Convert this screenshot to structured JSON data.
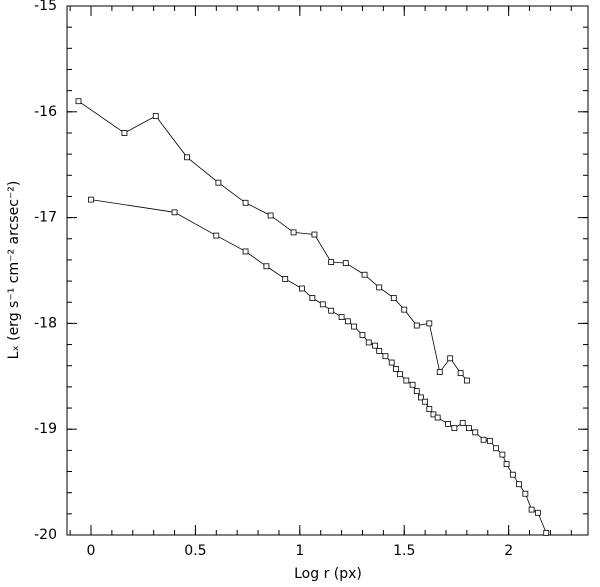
{
  "chart_data": {
    "type": "line",
    "xlabel": "Log r (px)",
    "ylabel": "Lₓ (erg s⁻¹ cm⁻² arcsec⁻²)",
    "xlim": [
      -0.115,
      2.38
    ],
    "ylim": [
      -20,
      -15
    ],
    "xticks": [
      0,
      0.5,
      1,
      1.5,
      2
    ],
    "yticks": [
      -20,
      -19,
      -18,
      -17,
      -16,
      -15
    ],
    "series": [
      {
        "color": "#000000",
        "x": [
          -0.06,
          0.16,
          0.31,
          0.46,
          0.61,
          0.74,
          0.86,
          0.97,
          1.07,
          1.15,
          1.22,
          1.31,
          1.38,
          1.45,
          1.5,
          1.56,
          1.62,
          1.67,
          1.72,
          1.77,
          1.8
        ],
        "values": [
          -15.9,
          -16.2,
          -16.04,
          -16.43,
          -16.67,
          -16.86,
          -16.98,
          -17.14,
          -17.16,
          -17.42,
          -17.43,
          -17.54,
          -17.66,
          -17.76,
          -17.87,
          -18.02,
          -18.0,
          -18.46,
          -18.33,
          -18.47,
          -18.54
        ]
      },
      {
        "color": "#000000",
        "x": [
          0,
          0.4,
          0.6,
          0.74,
          0.84,
          0.93,
          1.01,
          1.06,
          1.11,
          1.15,
          1.2,
          1.23,
          1.26,
          1.3,
          1.33,
          1.36,
          1.38,
          1.41,
          1.44,
          1.46,
          1.48,
          1.51,
          1.54,
          1.56,
          1.58,
          1.6,
          1.62,
          1.64,
          1.66,
          1.71,
          1.74,
          1.78,
          1.81,
          1.84,
          1.88,
          1.91,
          1.94,
          1.97,
          1.99,
          2.02,
          2.05,
          2.08,
          2.11,
          2.14,
          2.18
        ],
        "values": [
          -16.83,
          -16.95,
          -17.17,
          -17.32,
          -17.46,
          -17.58,
          -17.67,
          -17.76,
          -17.82,
          -17.88,
          -17.94,
          -17.98,
          -18.03,
          -18.11,
          -18.18,
          -18.21,
          -18.26,
          -18.31,
          -18.37,
          -18.43,
          -18.48,
          -18.54,
          -18.58,
          -18.64,
          -18.7,
          -18.74,
          -18.81,
          -18.86,
          -18.89,
          -18.95,
          -18.99,
          -18.94,
          -18.99,
          -19.03,
          -19.1,
          -19.11,
          -19.18,
          -19.24,
          -19.33,
          -19.43,
          -19.52,
          -19.61,
          -19.76,
          -19.79,
          -19.98
        ]
      }
    ]
  }
}
